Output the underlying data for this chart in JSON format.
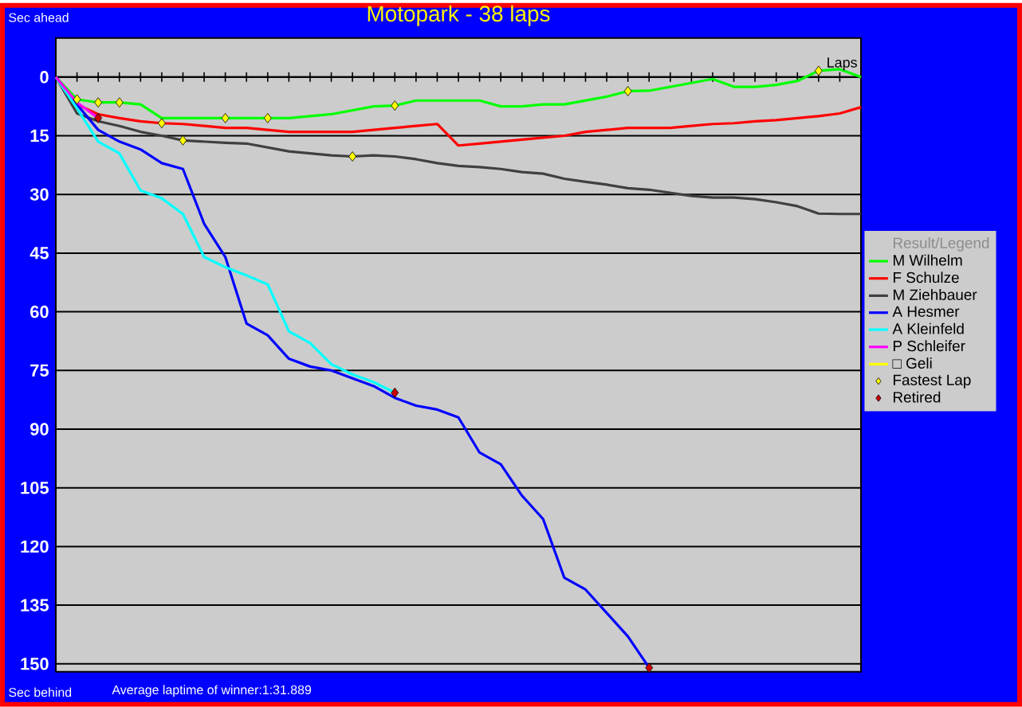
{
  "chart_data": {
    "type": "line",
    "title": "Motopark - 38 laps",
    "ylabel": "Sec ahead",
    "xlabel": "Laps",
    "legend_title": "Result/Legend",
    "annotations": [
      "Sec behind",
      "Average laptime of winner:1:31.889"
    ],
    "categories": [
      null,
      null,
      null,
      null,
      null,
      null,
      null,
      null,
      null,
      null,
      null,
      null,
      null,
      null,
      null,
      null,
      null,
      null,
      null,
      null,
      null,
      null,
      null,
      null,
      null,
      null,
      null,
      null,
      null,
      null,
      null,
      null,
      null,
      null,
      null,
      null,
      null,
      null,
      null
    ],
    "ylim": [
      152,
      -10
    ],
    "yticks": [
      {
        "value": 0,
        "label": "0"
      },
      {
        "value": 15,
        "label": "15"
      },
      {
        "value": 30,
        "label": "30"
      },
      {
        "value": 45,
        "label": "45"
      },
      {
        "value": 60,
        "label": "60"
      },
      {
        "value": 75,
        "label": "75"
      },
      {
        "value": 90,
        "label": "90"
      },
      {
        "value": 105,
        "label": "105"
      },
      {
        "value": 120,
        "label": "120"
      },
      {
        "value": 135,
        "label": "135"
      },
      {
        "value": 150,
        "label": "150"
      }
    ],
    "grid": "y",
    "legend": "right",
    "tick_labels": "y",
    "marker": "none",
    "series": [
      {
        "name": "M Wilhelm",
        "color": "#00ff00",
        "values": [
          0,
          5.7,
          6.5,
          6.5,
          7,
          10.5,
          10.5,
          10.5,
          10.5,
          10.5,
          10.5,
          10.5,
          10,
          9.5,
          8.5,
          7.5,
          7.3,
          6,
          6,
          6,
          6,
          7.5,
          7.5,
          7,
          7,
          6,
          5,
          3.6,
          3.5,
          2.5,
          1.5,
          0.5,
          2.5,
          2.5,
          2,
          1,
          -1.6,
          -2,
          0
        ]
      },
      {
        "name": "F Schulze",
        "color": "#ff0000",
        "values": [
          0,
          7,
          9.5,
          10.5,
          11.3,
          11.8,
          12,
          12.5,
          13,
          13,
          13.5,
          14,
          14,
          14,
          14,
          13.5,
          13,
          12.5,
          12,
          17.5,
          17,
          16.5,
          16,
          15.5,
          15,
          14,
          13.5,
          13,
          13,
          13,
          12.5,
          12,
          11.8,
          11.3,
          11,
          10.5,
          10,
          9.3,
          7.7
        ]
      },
      {
        "name": "M Ziehbauer",
        "color": "#404040",
        "values": [
          0,
          9.3,
          11.3,
          12.5,
          14,
          15,
          16.2,
          16.5,
          16.8,
          17,
          18,
          19,
          19.5,
          20,
          20.3,
          20,
          20.3,
          21,
          22,
          22.7,
          23,
          23.5,
          24.3,
          24.7,
          26,
          26.8,
          27.5,
          28.4,
          28.8,
          29.6,
          30.4,
          30.8,
          30.8,
          31.2,
          32,
          33,
          34.9,
          35,
          35
        ]
      },
      {
        "name": "A Hesmer",
        "color": "#0000ff",
        "values": [
          0,
          7,
          13.5,
          16.5,
          18.5,
          22,
          23.5,
          37.5,
          46,
          63,
          66,
          72,
          74,
          75,
          77,
          79,
          82,
          84,
          85,
          87,
          96,
          99,
          107,
          113,
          128,
          131,
          137,
          143,
          151,
          null,
          null,
          null,
          null,
          null,
          null,
          null,
          null,
          null,
          null
        ]
      },
      {
        "name": "A Kleinfeld",
        "color": "#00ffff",
        "values": [
          0,
          8,
          16.5,
          19.5,
          29,
          31,
          35,
          46,
          48.6,
          50.7,
          53,
          65,
          68,
          73.4,
          76,
          78,
          80.7,
          null,
          null,
          null,
          null,
          null,
          null,
          null,
          null,
          null,
          null,
          null,
          null,
          null,
          null,
          null,
          null,
          null,
          null,
          null,
          null,
          null,
          null
        ]
      },
      {
        "name": "P Schleifer",
        "color": "#ff00ff",
        "values": [
          0,
          6.5,
          10.5,
          null,
          null,
          null,
          null,
          null,
          null,
          null,
          null,
          null,
          null,
          null,
          null,
          null,
          null,
          null,
          null,
          null,
          null,
          null,
          null,
          null,
          null,
          null,
          null,
          null,
          null,
          null,
          null,
          null,
          null,
          null,
          null,
          null,
          null,
          null,
          null
        ]
      },
      {
        "name": "□ Geli",
        "color": "#ffff00",
        "values": [
          null,
          null,
          null,
          null,
          null,
          null,
          null,
          null,
          null,
          null,
          null,
          null,
          null,
          null,
          null,
          null,
          null,
          null,
          null,
          null,
          null,
          null,
          null,
          null,
          null,
          null,
          null,
          null,
          null,
          null,
          null,
          null,
          null,
          null,
          null,
          null,
          null,
          null,
          null
        ]
      },
      {
        "name": "Fastest Lap",
        "type": "scatter",
        "marker": "diamond",
        "color": "#ffff00",
        "values": [
          null,
          5.7,
          6.5,
          6.5,
          null,
          11.8,
          16.2,
          null,
          10.5,
          null,
          10.5,
          null,
          null,
          null,
          20.3,
          null,
          7.3,
          null,
          null,
          null,
          null,
          null,
          null,
          null,
          null,
          null,
          null,
          3.6,
          null,
          null,
          null,
          null,
          null,
          null,
          null,
          null,
          -1.6,
          null,
          null
        ]
      },
      {
        "name": "Retired",
        "type": "scatter",
        "marker": "diamond",
        "color": "#cc0000",
        "values": [
          null,
          null,
          10.5,
          null,
          null,
          null,
          null,
          null,
          null,
          null,
          null,
          null,
          null,
          null,
          null,
          null,
          80.7,
          null,
          null,
          null,
          null,
          null,
          null,
          null,
          null,
          null,
          null,
          null,
          151,
          null,
          null,
          null,
          null,
          null,
          null,
          null,
          null,
          null,
          null
        ]
      }
    ]
  }
}
